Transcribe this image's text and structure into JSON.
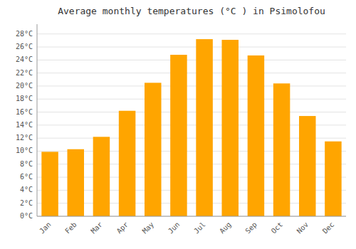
{
  "chart_data": {
    "type": "bar",
    "title": "Average monthly temperatures (°C ) in Psimolofou",
    "categories": [
      "Jan",
      "Feb",
      "Mar",
      "Apr",
      "May",
      "Jun",
      "Jul",
      "Aug",
      "Sep",
      "Oct",
      "Nov",
      "Dec"
    ],
    "values": [
      9.9,
      10.3,
      12.2,
      16.2,
      20.5,
      24.8,
      27.2,
      27.1,
      24.7,
      20.4,
      15.4,
      11.5
    ],
    "color": "#FFA500",
    "ylim": [
      0,
      29.5
    ],
    "yticks": [
      {
        "value": 0,
        "label": "0°C"
      },
      {
        "value": 2,
        "label": "2°C"
      },
      {
        "value": 4,
        "label": "4°C"
      },
      {
        "value": 6,
        "label": "6°C"
      },
      {
        "value": 8,
        "label": "8°C"
      },
      {
        "value": 10,
        "label": "10°C"
      },
      {
        "value": 12,
        "label": "12°C"
      },
      {
        "value": 14,
        "label": "14°C"
      },
      {
        "value": 16,
        "label": "16°C"
      },
      {
        "value": 18,
        "label": "18°C"
      },
      {
        "value": 20,
        "label": "20°C"
      },
      {
        "value": 22,
        "label": "22°C"
      },
      {
        "value": 24,
        "label": "24°C"
      },
      {
        "value": 26,
        "label": "26°C"
      },
      {
        "value": 28,
        "label": "28°C"
      }
    ],
    "grid": true
  }
}
